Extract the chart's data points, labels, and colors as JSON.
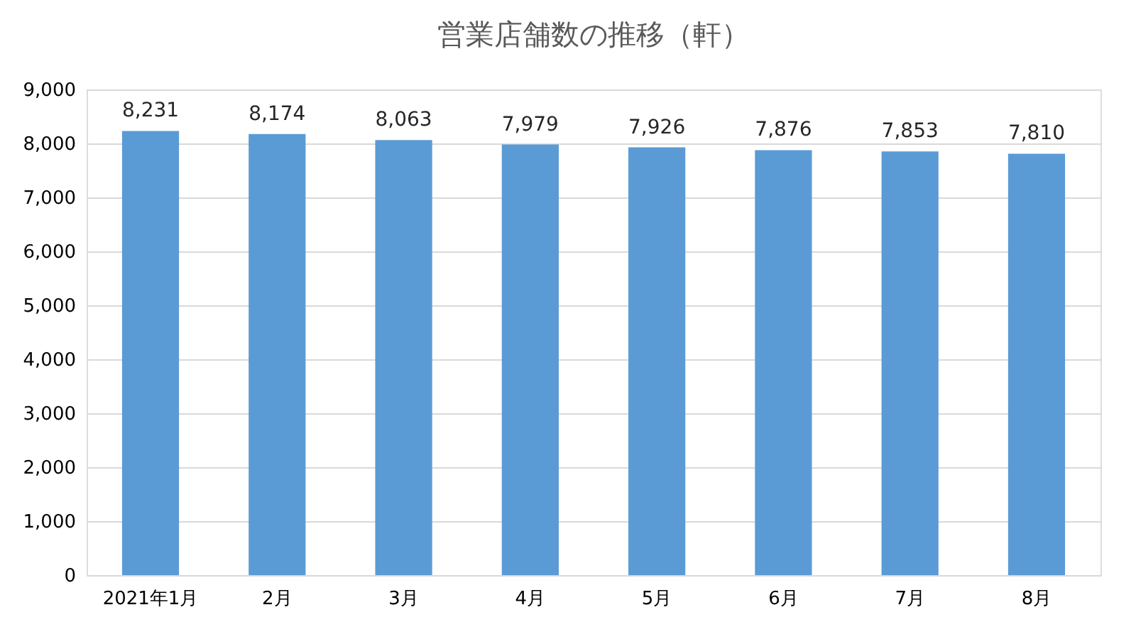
{
  "chart_data": {
    "type": "bar",
    "title": "営業店舗数の推移（軒）",
    "categories": [
      "2021年1月",
      "2月",
      "3月",
      "4月",
      "5月",
      "6月",
      "7月",
      "8月"
    ],
    "values": [
      8231,
      8174,
      8063,
      7979,
      7926,
      7876,
      7853,
      7810
    ],
    "value_labels": [
      "8,231",
      "8,174",
      "8,063",
      "7,979",
      "7,926",
      "7,876",
      "7,853",
      "7,810"
    ],
    "color": "#5b9bd5",
    "ylim": [
      0,
      9000
    ],
    "yticks": [
      0,
      {
        "value": 1000,
        "label": "1,000"
      },
      {
        "value": 2000,
        "label": "2,000"
      },
      {
        "value": 3000,
        "label": "3,000"
      },
      {
        "value": 4000,
        "label": "4,000"
      },
      {
        "value": 5000,
        "label": "5,000"
      },
      {
        "value": 6000,
        "label": "6,000"
      },
      {
        "value": 7000,
        "label": "7,000"
      },
      {
        "value": 8000,
        "label": "8,000"
      },
      {
        "value": 9000,
        "label": "9,000"
      }
    ],
    "grid": "y"
  }
}
